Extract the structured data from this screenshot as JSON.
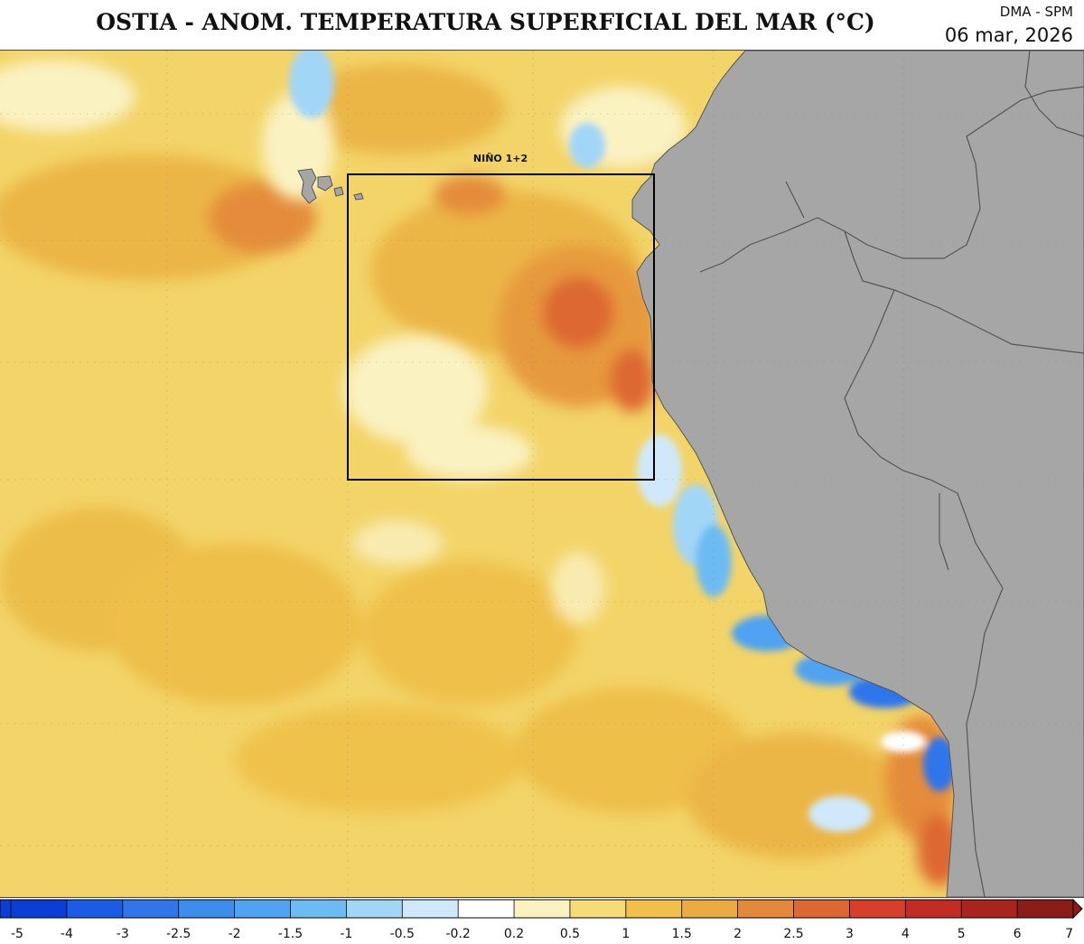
{
  "header": {
    "title": "OSTIA - ANOM. TEMPERATURA SUPERFICIAL DEL MAR (°C)",
    "agency": "DMA - SPM",
    "date": "06 mar, 2026"
  },
  "map": {
    "region_label": "NIÑO 1+2",
    "land_color": "#a6a6a6",
    "coast_line_color": "#555555"
  },
  "colorbar": {
    "ticks": [
      "-5",
      "-4",
      "-3",
      "-2.5",
      "-2",
      "-1.5",
      "-1",
      "-0.5",
      "-0.2",
      "0.2",
      "0.5",
      "1",
      "1.5",
      "2",
      "2.5",
      "3",
      "4",
      "5",
      "6",
      "7"
    ],
    "colors": [
      "#0a3fd6",
      "#1b5ce4",
      "#2f76ec",
      "#3d8ded",
      "#4fa3f0",
      "#6dbbf3",
      "#a2d6f7",
      "#cfe9fb",
      "#ffffff",
      "#fbf2c2",
      "#f6dc78",
      "#f0c04a",
      "#ebab42",
      "#e4893a",
      "#dd6731",
      "#d6402a",
      "#c22c24",
      "#a9241e",
      "#8c1c18"
    ]
  }
}
